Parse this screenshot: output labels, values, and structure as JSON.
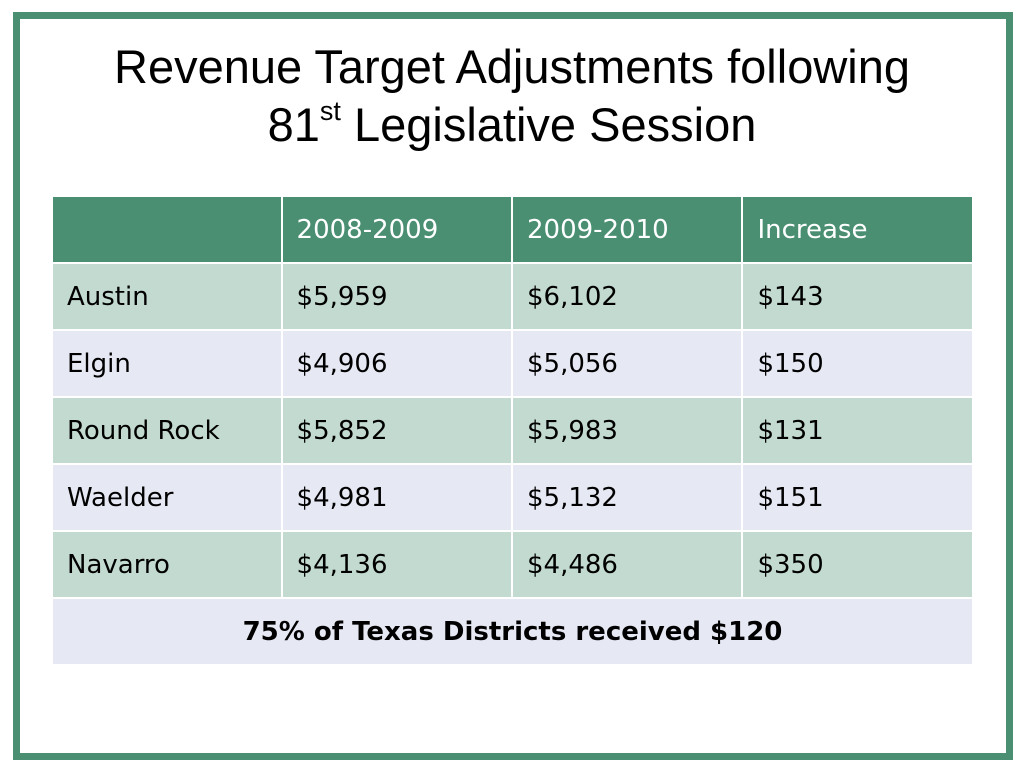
{
  "slide": {
    "title_line1": "Revenue Target Adjustments following",
    "title_line2_number": "81",
    "title_line2_sup": "st",
    "title_line2_rest": " Legislative Session"
  },
  "table": {
    "headers": [
      "",
      "2008-2009",
      "2009-2010",
      "Increase"
    ],
    "rows": [
      [
        "Austin",
        "$5,959",
        "$6,102",
        "$143"
      ],
      [
        "Elgin",
        "$4,906",
        "$5,056",
        "$150"
      ],
      [
        "Round Rock",
        "$5,852",
        "$5,983",
        "$131"
      ],
      [
        "Waelder",
        "$4,981",
        "$5,132",
        "$151"
      ],
      [
        "Navarro",
        "$4,136",
        "$4,486",
        "$350"
      ]
    ],
    "footer": "75% of Texas Districts received $120"
  },
  "colors": {
    "frame": "#4a8f72",
    "header_bg": "#4a8f72",
    "row_green": "#c2dacf",
    "row_lavender": "#e6e8f3"
  }
}
